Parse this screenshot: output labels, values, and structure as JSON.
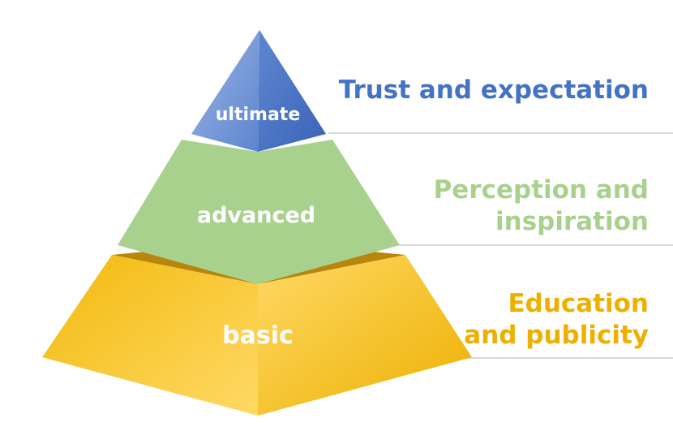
{
  "tiers": [
    {
      "label": "ultimate",
      "description": [
        "Trust and expectation"
      ],
      "color": "#4472C4"
    },
    {
      "label": "advanced",
      "description": [
        "Perception and",
        "inspiration"
      ],
      "color": "#A9D18E"
    },
    {
      "label": "basic",
      "description": [
        "Education",
        "and publicity"
      ],
      "color": "#EDB000"
    }
  ],
  "colors": {
    "divider": "#bfbfbf",
    "ultimate_light": "#8FAADC",
    "ultimate_dark": "#3A63B8",
    "advanced_face": "#A9D18E",
    "basic_light": "#FFD966",
    "basic_dark": "#EDB000",
    "basic_rim": "#B8860B"
  }
}
